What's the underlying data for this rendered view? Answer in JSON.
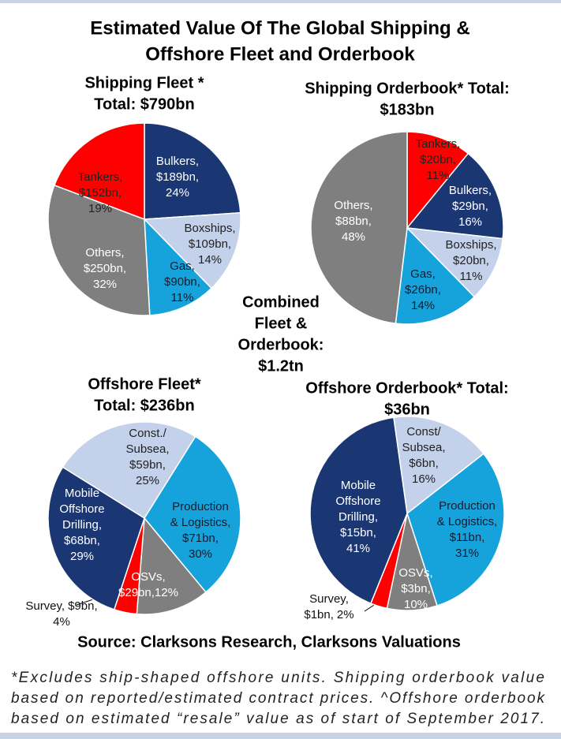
{
  "title": [
    "Estimated Value Of The Global Shipping &",
    "Offshore Fleet and Orderbook"
  ],
  "center_text": [
    "Combined",
    "Fleet &",
    "Orderbook:",
    "$1.2tn"
  ],
  "source": "Source: Clarksons Research, Clarksons Valuations",
  "footnote": [
    "*Excludes ship-shaped offshore units. Shipping orderbook value",
    "based on reported/estimated contract prices. ^Offshore orderbook",
    "based on estimated “resale” value as of start of September 2017."
  ],
  "chart_data": [
    {
      "type": "pie",
      "title": [
        "Shipping Fleet *",
        "Total: $790bn"
      ],
      "categories": [
        [
          "Bulkers,"
        ],
        [
          "Boxships,"
        ],
        [
          "Gas,"
        ],
        [
          "Others,"
        ],
        [
          "Tankers,"
        ]
      ],
      "values": [
        189,
        109,
        90,
        250,
        152
      ],
      "value_labels": [
        "$189bn,",
        "$109bn,",
        "$90bn,",
        "$250bn,",
        "$152bn,"
      ],
      "percents": [
        24,
        14,
        11,
        32,
        19
      ],
      "percent_labels": [
        "24%",
        "14%",
        "11%",
        "32%",
        "19%"
      ],
      "colors": [
        "#1a3673",
        "#c3d1ea",
        "#16a3dc",
        "#7f7f7f",
        "#ff0000"
      ]
    },
    {
      "type": "pie",
      "title": [
        "Shipping Orderbook* Total:",
        "$183bn"
      ],
      "categories": [
        [
          "Tankers,"
        ],
        [
          "Bulkers,"
        ],
        [
          "Boxships,"
        ],
        [
          "Gas,"
        ],
        [
          "Others,"
        ]
      ],
      "values": [
        20,
        29,
        20,
        26,
        88
      ],
      "value_labels": [
        "$20bn,",
        "$29bn,",
        "$20bn,",
        "$26bn,",
        "$88bn,"
      ],
      "percents": [
        11,
        16,
        11,
        14,
        48
      ],
      "percent_labels": [
        "11%",
        "16%",
        "11%",
        "14%",
        "48%"
      ],
      "colors": [
        "#ff0000",
        "#1a3673",
        "#c3d1ea",
        "#16a3dc",
        "#7f7f7f"
      ]
    },
    {
      "type": "pie",
      "title": [
        "Offshore Fleet*",
        "Total: $236bn"
      ],
      "categories": [
        [
          "Const./",
          "Subsea,"
        ],
        [
          "Production",
          "& Logistics,"
        ],
        [
          "OSVs,"
        ],
        [
          "Survey,"
        ],
        [
          "Mobile",
          "Offshore",
          "Drilling,"
        ]
      ],
      "values": [
        59,
        71,
        29,
        9,
        68
      ],
      "value_labels": [
        "$59bn,",
        "$71bn,",
        "$29bn,",
        "$9bn,",
        "$68bn,"
      ],
      "percents": [
        25,
        30,
        12,
        4,
        29
      ],
      "percent_labels": [
        "25%",
        "30%",
        "12%",
        "4%",
        "29%"
      ],
      "colors": [
        "#c3d1ea",
        "#16a3dc",
        "#7f7f7f",
        "#ff0000",
        "#1a3673"
      ]
    },
    {
      "type": "pie",
      "title": [
        "Offshore Orderbook* Total:",
        "$36bn"
      ],
      "categories": [
        [
          "Const/",
          "Subsea,"
        ],
        [
          "Production",
          "& Logistics,"
        ],
        [
          "OSVs,"
        ],
        [
          "Survey,"
        ],
        [
          "Mobile",
          "Offshore",
          "Drilling,"
        ]
      ],
      "values": [
        6,
        11,
        3,
        1,
        15
      ],
      "value_labels": [
        "$6bn,",
        "$11bn,",
        "$3bn,",
        "$1bn,",
        "$15bn,"
      ],
      "percents": [
        16,
        31,
        10,
        2,
        41
      ],
      "percent_labels": [
        "16%",
        "31%",
        "10%",
        "2%",
        "41%"
      ],
      "colors": [
        "#c3d1ea",
        "#16a3dc",
        "#7f7f7f",
        "#ff0000",
        "#1a3673"
      ]
    }
  ]
}
